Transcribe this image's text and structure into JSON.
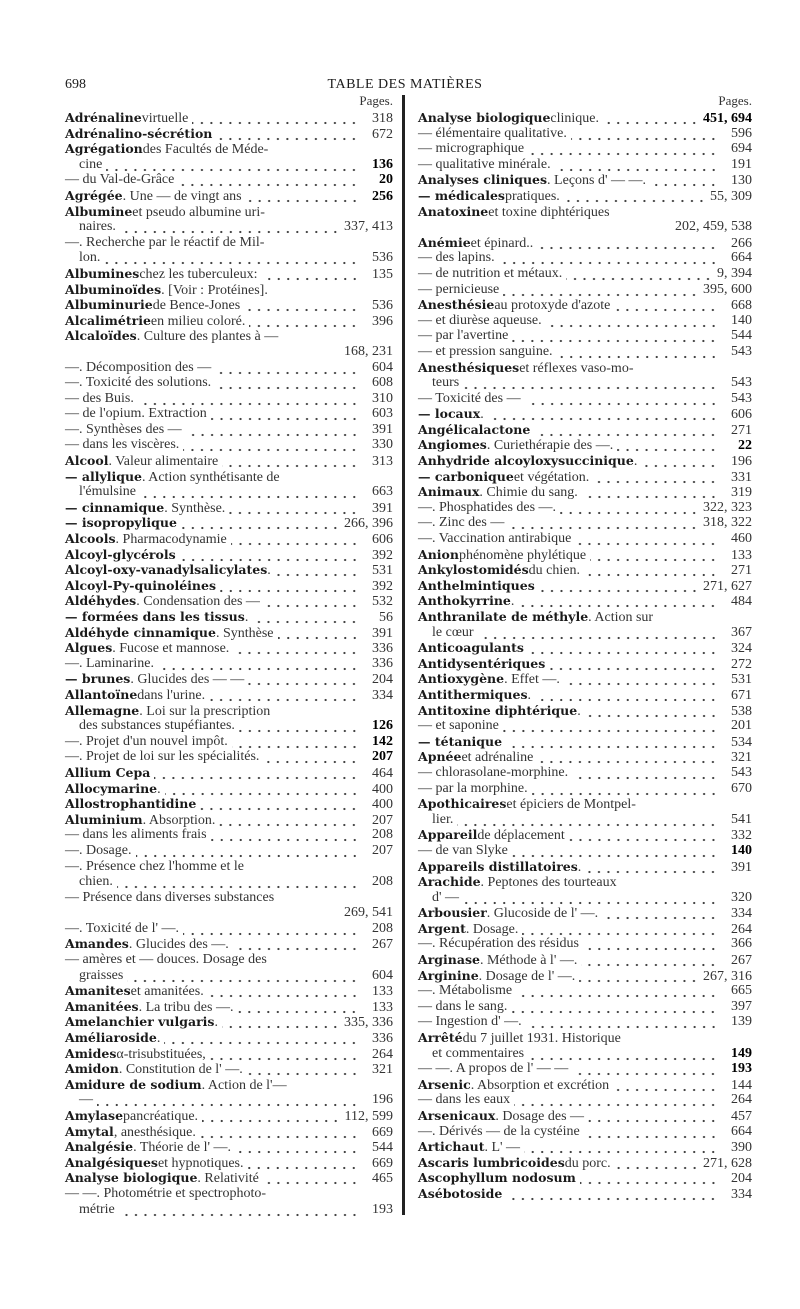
{
  "header": {
    "page_number": "698",
    "title": "TABLE DES MATIÈRES"
  },
  "left": {
    "pages_label": "Pages.",
    "entries": [
      {
        "b": "Adrénaline",
        "t": " virtuelle",
        "p": "318"
      },
      {
        "b": "Adrénalino-sécrétion",
        "t": "",
        "p": "672"
      },
      {
        "b": "Agrégation",
        "t": " des Facultés de Méde-",
        "c": "cine",
        "p": "136",
        "pb": true
      },
      {
        "b": "",
        "t": "— du Val-de-Grâce",
        "p": "20",
        "pb": true
      },
      {
        "b": "Agrégée",
        "t": ". Une — de vingt ans",
        "p": "256",
        "pb": true
      },
      {
        "b": "Albumine",
        "t": " et pseudo albumine uri-",
        "c": "naires.",
        "p": "337, 413"
      },
      {
        "b": "",
        "t": "—. Recherche par le réactif de Mil-",
        "c": "lon.",
        "p": "536"
      },
      {
        "b": "Albumines",
        "t": " chez les tuberculeux:",
        "p": "135"
      },
      {
        "b": "Albuminoïdes",
        "t": ". [Voir : Protéines].",
        "p": ""
      },
      {
        "b": "Albuminurie",
        "t": " de Bence-Jones",
        "p": "536"
      },
      {
        "b": "Alcalimétrie",
        "t": " en milieu coloré.",
        "p": "396"
      },
      {
        "b": "Alcaloïdes",
        "t": ". Culture des plantes à —",
        "c": "",
        "p": "168, 231"
      },
      {
        "b": "",
        "t": "—. Décomposition des —",
        "p": "604"
      },
      {
        "b": "",
        "t": "—. Toxicité des solutions.",
        "p": "608"
      },
      {
        "b": "",
        "t": "— des Buis.",
        "p": "310"
      },
      {
        "b": "",
        "t": "— de l'opium. Extraction",
        "p": "603"
      },
      {
        "b": "",
        "t": "—. Synthèses des —",
        "p": "391"
      },
      {
        "b": "",
        "t": "— dans les viscères.",
        "p": "330"
      },
      {
        "b": "Alcool",
        "t": ". Valeur alimentaire",
        "p": "313"
      },
      {
        "b": "— allylique",
        "t": ". Action synthétisante de",
        "c": "l'émulsine",
        "p": "663"
      },
      {
        "b": "— cinnamique",
        "t": ". Synthèse.",
        "p": "391"
      },
      {
        "b": "— isopropylique",
        "t": "",
        "p": "266, 396"
      },
      {
        "b": "Alcools",
        "t": ". Pharmacodynamie",
        "p": "606"
      },
      {
        "b": "Alcoyl-glycérols",
        "t": "",
        "p": "392"
      },
      {
        "b": "Alcoyl-oxy-vanadylsalicylates",
        "t": ".",
        "p": "531"
      },
      {
        "b": "Alcoyl-Py-quinoléines",
        "t": "",
        "p": "392"
      },
      {
        "b": "Aldéhydes",
        "t": ". Condensation des —",
        "p": "532"
      },
      {
        "b": "— formées dans les tissus",
        "t": ".",
        "p": "56"
      },
      {
        "b": "Aldéhyde cinnamique",
        "t": ". Synthèse",
        "p": "391"
      },
      {
        "b": "Algues",
        "t": ". Fucose et mannose.",
        "p": "336"
      },
      {
        "b": "",
        "t": "—. Laminarine.",
        "p": "336"
      },
      {
        "b": "— brunes",
        "t": ". Glucides des — —",
        "p": "204"
      },
      {
        "b": "Allantoïne",
        "t": " dans l'urine.",
        "p": "334"
      },
      {
        "b": "Allemagne",
        "t": ". Loi sur la prescription",
        "c": "des substances stupéfiantes.",
        "p": "126",
        "pb": true
      },
      {
        "b": "",
        "t": "—. Projet d'un nouvel impôt.",
        "p": "142",
        "pb": true
      },
      {
        "b": "",
        "t": "—. Projet de loi sur les spécialités.",
        "p": "207",
        "pb": true
      },
      {
        "b": "Allium Cepa",
        "t": "",
        "p": "464"
      },
      {
        "b": "Allocymarine",
        "t": ".",
        "p": "400"
      },
      {
        "b": "Allostrophantidine",
        "t": "",
        "p": "400"
      },
      {
        "b": "Aluminium",
        "t": ". Absorption.",
        "p": "207"
      },
      {
        "b": "",
        "t": "— dans les aliments frais",
        "p": "208"
      },
      {
        "b": "",
        "t": "—. Dosage.",
        "p": "207"
      },
      {
        "b": "",
        "t": "—. Présence chez l'homme et le",
        "c": "chien.",
        "p": "208"
      },
      {
        "b": "",
        "t": "— Présence dans diverses substances",
        "c": "",
        "p": "269, 541"
      },
      {
        "b": "",
        "t": "—. Toxicité de l' —.",
        "p": "208"
      },
      {
        "b": "Amandes",
        "t": ". Glucides des —.",
        "p": "267"
      },
      {
        "b": "",
        "t": "— amères et — douces. Dosage des",
        "c": "graisses",
        "p": "604"
      },
      {
        "b": "Amanites",
        "t": " et amanitées.",
        "p": "133"
      },
      {
        "b": "Amanitées",
        "t": ". La tribu des —.",
        "p": "133"
      },
      {
        "b": "Amelanchier vulgaris",
        "t": ".",
        "p": "335, 336"
      },
      {
        "b": "Améliaroside",
        "t": ".",
        "p": "336"
      },
      {
        "b": "Amides",
        "t": " α-trisubstituées,",
        "p": "264"
      },
      {
        "b": "Amidon",
        "t": ". Constitution de l' —.",
        "p": "321"
      },
      {
        "b": "Amidure de sodium",
        "t": ". Action de l'—",
        "c": "—",
        "p": "196"
      },
      {
        "b": "Amylase",
        "t": " pancréatique.",
        "p": "112, 599"
      },
      {
        "b": "Amytal",
        "t": ", anesthésique.",
        "p": "669"
      },
      {
        "b": "Analgésie",
        "t": ". Théorie de l' —.",
        "p": "544"
      },
      {
        "b": "Analgésiques",
        "t": " et hypnotiques.",
        "p": "669"
      },
      {
        "b": "Analyse biologique",
        "t": ". Relativité",
        "p": "465"
      },
      {
        "b": "",
        "t": "— —. Photométrie et spectrophoto-",
        "c": "métrie",
        "p": "193"
      }
    ]
  },
  "right": {
    "pages_label": "Pages.",
    "entries": [
      {
        "b": "Analyse biologique",
        "t": " clinique.",
        "p": "451, 694",
        "pb": true
      },
      {
        "b": "",
        "t": "— élémentaire qualitative.",
        "p": "596"
      },
      {
        "b": "",
        "t": "— micrographique",
        "p": "694"
      },
      {
        "b": "",
        "t": "— qualitative minérale.",
        "p": "191"
      },
      {
        "b": "Analyses cliniques",
        "t": ". Leçons d' — —.",
        "p": "130"
      },
      {
        "b": "— médicales",
        "t": " pratiques.",
        "p": "55, 309"
      },
      {
        "b": "Anatoxine",
        "t": " et toxine diphtériques",
        "c": "",
        "p": "202, 459, 538"
      },
      {
        "b": "Anémie",
        "t": " et épinard..",
        "p": "266"
      },
      {
        "b": "",
        "t": "— des lapins.",
        "p": "664"
      },
      {
        "b": "",
        "t": "— de nutrition et métaux.",
        "p": "9, 394"
      },
      {
        "b": "",
        "t": "— pernicieuse",
        "p": "395, 600"
      },
      {
        "b": "Anesthésie",
        "t": " au protoxyde d'azote",
        "p": "668"
      },
      {
        "b": "",
        "t": "— et diurèse aqueuse.",
        "p": "140"
      },
      {
        "b": "",
        "t": "— par l'avertine",
        "p": "544"
      },
      {
        "b": "",
        "t": "— et pression sanguine.",
        "p": "543"
      },
      {
        "b": "Anesthésiques",
        "t": " et réflexes vaso-mo-",
        "c": "teurs",
        "p": "543"
      },
      {
        "b": "",
        "t": "— Toxicité des —",
        "p": "543"
      },
      {
        "b": "— locaux",
        "t": ".",
        "p": "606"
      },
      {
        "b": "Angélicalactone",
        "t": "",
        "p": "271"
      },
      {
        "b": "Angiomes",
        "t": ". Curiethérapie des —.",
        "p": "22",
        "pb": true
      },
      {
        "b": "Anhydride alcoyloxysuccinique",
        "t": ".",
        "p": "196"
      },
      {
        "b": "— carbonique",
        "t": " et végétation.",
        "p": "331"
      },
      {
        "b": "Animaux",
        "t": ". Chimie du sang.",
        "p": "319"
      },
      {
        "b": "",
        "t": "—. Phosphatides des —.",
        "p": "322, 323"
      },
      {
        "b": "",
        "t": "—. Zinc des —",
        "p": "318, 322"
      },
      {
        "b": "",
        "t": "—. Vaccination antirabique",
        "p": "460"
      },
      {
        "b": "Anion",
        "t": " phénomène phylétique",
        "p": "133"
      },
      {
        "b": "Ankylostomidés",
        "t": " du chien.",
        "p": "271"
      },
      {
        "b": "Anthelmintiques",
        "t": "",
        "p": "271, 627"
      },
      {
        "b": "Anthokyrrine",
        "t": ".",
        "p": "484"
      },
      {
        "b": "Anthranilate de méthyle",
        "t": ". Action sur",
        "c": "le cœur",
        "p": "367"
      },
      {
        "b": "Anticoagulants",
        "t": "",
        "p": "324"
      },
      {
        "b": "Antidysentériques",
        "t": "",
        "p": "272"
      },
      {
        "b": "Antioxygène",
        "t": ". Effet —.",
        "p": "531"
      },
      {
        "b": "Antithermiques",
        "t": ".",
        "p": "671"
      },
      {
        "b": "Antitoxine diphtérique",
        "t": ".",
        "p": "538"
      },
      {
        "b": "",
        "t": "— et saponine",
        "p": "201"
      },
      {
        "b": "— tétanique",
        "t": "",
        "p": "534"
      },
      {
        "b": "Apnée",
        "t": " et adrénaline",
        "p": "321"
      },
      {
        "b": "",
        "t": "— chlorasolane-morphine.",
        "p": "543"
      },
      {
        "b": "",
        "t": "— par la morphine.",
        "p": "670"
      },
      {
        "b": "Apothicaires",
        "t": " et épiciers de Montpel-",
        "c": "lier.",
        "p": "541"
      },
      {
        "b": "Appareil",
        "t": " de déplacement",
        "p": "332"
      },
      {
        "b": "",
        "t": "— de van Slyke",
        "p": "140",
        "pb": true
      },
      {
        "b": "Appareils distillatoires",
        "t": ".",
        "p": "391"
      },
      {
        "b": "Arachide",
        "t": ". Peptones des tourteaux",
        "c": "d' —",
        "p": "320"
      },
      {
        "b": "Arbousier",
        "t": ". Glucoside de l' —.",
        "p": "334"
      },
      {
        "b": "Argent",
        "t": ". Dosage.",
        "p": "264"
      },
      {
        "b": "",
        "t": "—. Récupération des résidus",
        "p": "366"
      },
      {
        "b": "Arginase",
        "t": ". Méthode à l' —.",
        "p": "267"
      },
      {
        "b": "Arginine",
        "t": ". Dosage de l' —.",
        "p": "267, 316"
      },
      {
        "b": "",
        "t": "—. Métabolisme",
        "p": "665"
      },
      {
        "b": "",
        "t": "— dans le sang.",
        "p": "397"
      },
      {
        "b": "",
        "t": "— Ingestion d' —.",
        "p": "139"
      },
      {
        "b": "Arrêté",
        "t": " du 7 juillet 1931. Historique",
        "c": "et commentaires",
        "p": "149",
        "pb": true
      },
      {
        "b": "",
        "t": "— —. A propos de l' — —",
        "p": "193",
        "pb": true
      },
      {
        "b": "Arsenic",
        "t": ". Absorption et excrétion",
        "p": "144"
      },
      {
        "b": "",
        "t": "— dans les eaux",
        "p": "264"
      },
      {
        "b": "Arsenicaux",
        "t": ". Dosage des —",
        "p": "457"
      },
      {
        "b": "",
        "t": "—. Dérivés — de la cystéine",
        "p": "664"
      },
      {
        "b": "Artichaut",
        "t": ". L' —",
        "p": "390"
      },
      {
        "b": "Ascaris lumbricoides",
        "t": " du porc.",
        "p": "271, 628"
      },
      {
        "b": "Ascophyllum nodosum",
        "t": "",
        "p": "204"
      },
      {
        "b": "Asébotoside",
        "t": "",
        "p": "334"
      }
    ]
  }
}
